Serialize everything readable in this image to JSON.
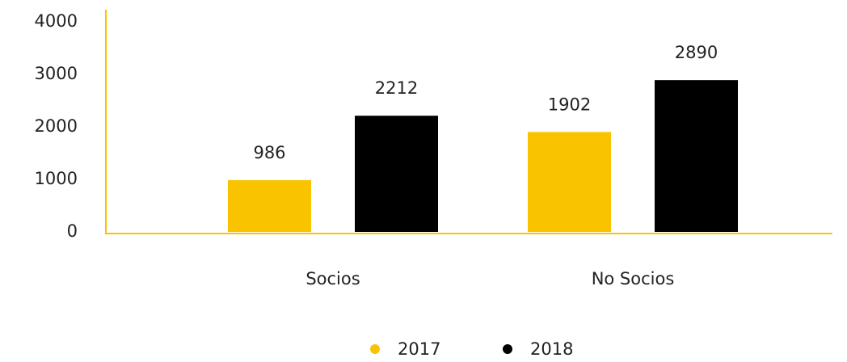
{
  "chart_data": {
    "type": "bar",
    "categories": [
      "Socios",
      "No Socios"
    ],
    "series": [
      {
        "name": "2017",
        "color": "#f9c300",
        "values": [
          986,
          1902
        ]
      },
      {
        "name": "2018",
        "color": "#000000",
        "values": [
          2212,
          2890
        ]
      }
    ],
    "ylim": [
      0,
      4000
    ],
    "yticks": [
      0,
      1000,
      2000,
      3000,
      4000
    ],
    "grid": false,
    "legend": "bottom"
  }
}
